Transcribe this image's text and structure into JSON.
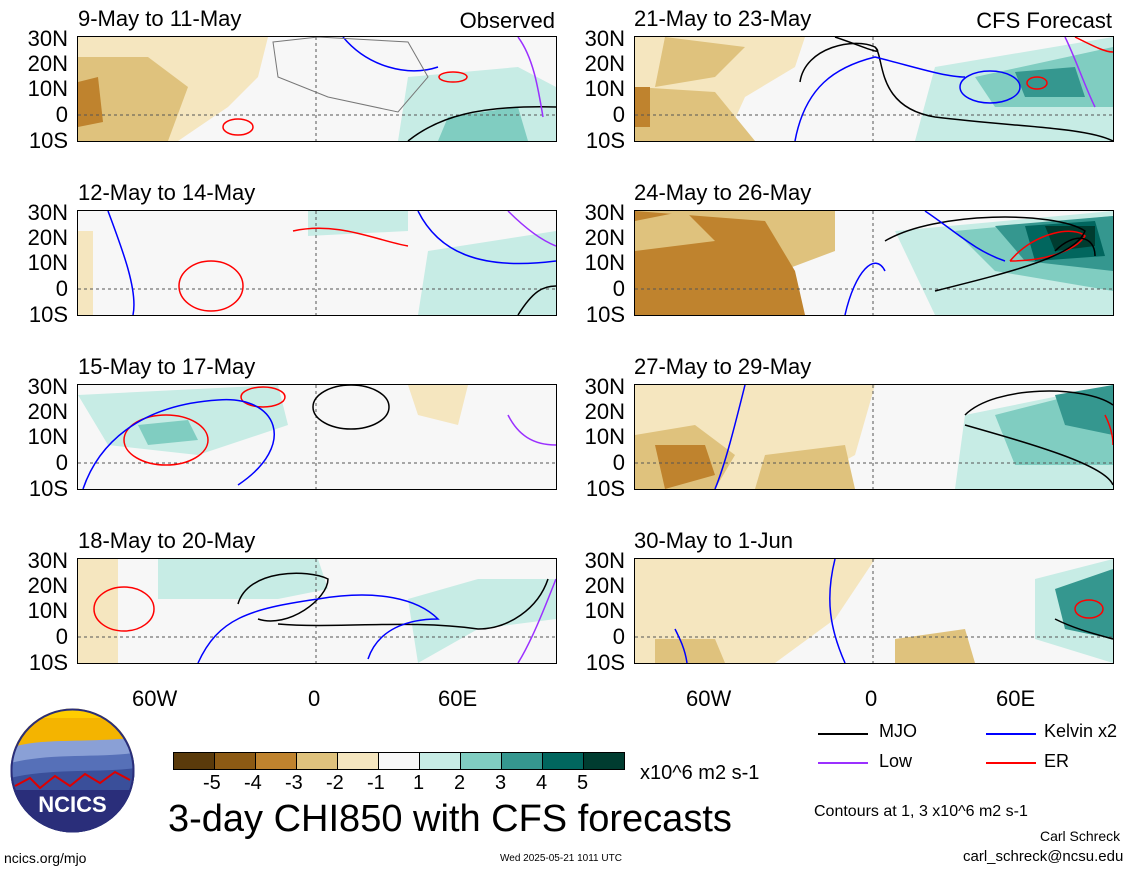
{
  "panels_left": [
    {
      "title": "9-May to 11-May",
      "tag": "Observed"
    },
    {
      "title": "12-May to 14-May",
      "tag": ""
    },
    {
      "title": "15-May to 17-May",
      "tag": ""
    },
    {
      "title": "18-May to 20-May",
      "tag": ""
    }
  ],
  "panels_right": [
    {
      "title": "21-May to 23-May",
      "tag": "CFS Forecast"
    },
    {
      "title": "24-May to 26-May",
      "tag": ""
    },
    {
      "title": "27-May to 29-May",
      "tag": ""
    },
    {
      "title": "30-May to 1-Jun",
      "tag": ""
    }
  ],
  "lat_labels": [
    "30N",
    "20N",
    "10N",
    "0",
    "10S"
  ],
  "lon_labels": [
    "60W",
    "0",
    "60E"
  ],
  "colorbar": {
    "ticks": [
      "-5",
      "-4",
      "-3",
      "-2",
      "-1",
      "1",
      "2",
      "3",
      "4",
      "5"
    ],
    "colors": [
      "#5a3a0b",
      "#8c5a14",
      "#bf832e",
      "#dfc27d",
      "#f5e6bf",
      "#f7f7f7",
      "#c7ece5",
      "#80cdc1",
      "#35978f",
      "#01665e",
      "#003c30"
    ],
    "units": "x10^6 m2 s-1"
  },
  "legend": {
    "mjo": "MJO",
    "kelvin": "Kelvin x2",
    "low": "Low",
    "er": "ER",
    "mjo_color": "#000000",
    "kelvin_color": "#0000ff",
    "low_color": "#9b30ff",
    "er_color": "#ff0000"
  },
  "title": "3-day CHI850 with CFS forecasts",
  "contours_note": "Contours at 1, 3 x10^6 m2 s-1",
  "author": "Carl Schreck",
  "email": "carl_schreck@ncsu.edu",
  "footer_left": "ncics.org/mjo",
  "timestamp": "Wed 2025-05-21 1011 UTC",
  "logo_text": "NCICS",
  "chart_data": {
    "type": "heatmap",
    "title": "3-day CHI850 with CFS forecasts",
    "variable": "CHI850 anomaly",
    "units": "x10^6 m2 s-1",
    "color_levels": [
      -5,
      -4,
      -3,
      -2,
      -1,
      1,
      2,
      3,
      4,
      5
    ],
    "lat_range": [
      "10S",
      "30N"
    ],
    "lon_ticks": [
      "60W",
      "0",
      "60E"
    ],
    "contour_levels": [
      1,
      3
    ],
    "panels": [
      "9-May to 11-May",
      "12-May to 14-May",
      "15-May to 17-May",
      "18-May to 20-May",
      "21-May to 23-May",
      "24-May to 26-May",
      "27-May to 29-May",
      "30-May to 1-Jun"
    ],
    "observed_panels": [
      "9-May to 11-May",
      "12-May to 14-May",
      "15-May to 17-May",
      "18-May to 20-May"
    ],
    "forecast_panels": [
      "21-May to 23-May",
      "24-May to 26-May",
      "27-May to 29-May",
      "30-May to 1-Jun"
    ],
    "series": [
      {
        "name": "MJO"
      },
      {
        "name": "Kelvin x2"
      },
      {
        "name": "Low"
      },
      {
        "name": "ER"
      }
    ]
  }
}
